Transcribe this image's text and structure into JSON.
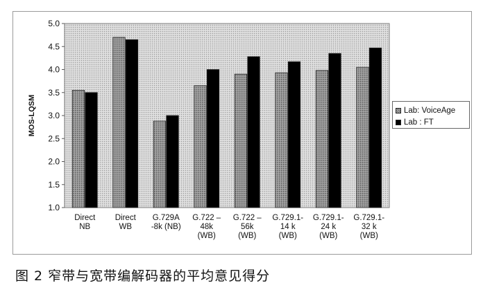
{
  "caption": "图 2  窄带与宽带编解码器的平均意见得分",
  "chart_data": {
    "type": "bar",
    "ylabel": "MOS-LQSM",
    "xlabel": "",
    "ylim": [
      1.0,
      5.0
    ],
    "yticks": [
      "1.0",
      "1.5",
      "2.0",
      "2.5",
      "3.0",
      "3.5",
      "4.0",
      "4.5",
      "5.0"
    ],
    "grid": false,
    "legend_position": "right",
    "categories": [
      [
        "Direct",
        "NB"
      ],
      [
        "Direct",
        "WB"
      ],
      [
        "G.729A",
        "-8k (NB)"
      ],
      [
        "G.722 –",
        "48k",
        "(WB)"
      ],
      [
        "G.722 –",
        "56k",
        "(WB)"
      ],
      [
        "G.729.1-",
        "14 k",
        "(WB)"
      ],
      [
        "G.729.1-",
        "24 k",
        "(WB)"
      ],
      [
        "G.729.1-",
        "32 k",
        "(WB)"
      ]
    ],
    "series": [
      {
        "name": "Lab: VoiceAge",
        "color": "#8c8c8c",
        "values": [
          3.55,
          4.7,
          2.88,
          3.65,
          3.9,
          3.93,
          3.98,
          4.05
        ]
      },
      {
        "name": "Lab : FT",
        "color": "#000000",
        "values": [
          3.5,
          4.65,
          3.0,
          4.0,
          4.28,
          4.17,
          4.35,
          4.47
        ]
      }
    ]
  }
}
